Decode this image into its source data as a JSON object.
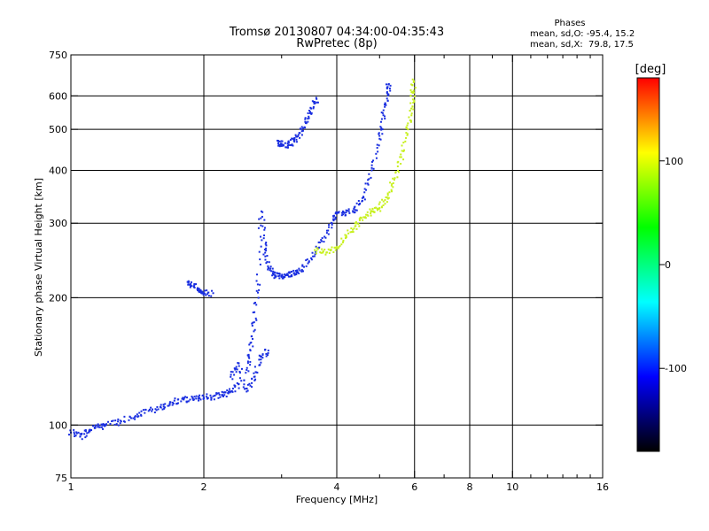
{
  "chart_data": {
    "type": "scatter",
    "title": "Tromsø 20130807 04:34:00-04:35:43",
    "subtitle": "RwPretec (8p)",
    "xlabel": "Frequency [MHz]",
    "ylabel": "Stationary phase Virtual Height [km]",
    "xscale": "log",
    "yscale": "log",
    "xlim": [
      1,
      16
    ],
    "ylim": [
      75,
      750
    ],
    "x_ticks": [
      1,
      2,
      4,
      6,
      8,
      10,
      16
    ],
    "x_tick_labels": [
      "1",
      "2",
      "4",
      "6",
      "8",
      "10",
      "16"
    ],
    "x_grid": [
      2,
      4,
      6,
      8,
      10
    ],
    "y_ticks": [
      75,
      100,
      200,
      300,
      400,
      500,
      600,
      750
    ],
    "y_tick_labels": [
      "75",
      "100",
      "200",
      "300",
      "400",
      "500",
      "600",
      "750"
    ],
    "y_grid": [
      100,
      200,
      300,
      400,
      500,
      600
    ],
    "grid": true,
    "phases": {
      "title": "Phases",
      "o_line": "mean, sd,O: -95.4, 15.2",
      "x_line": "mean, sd,X:  79.8, 17.5"
    },
    "colorbar": {
      "label": "[deg]",
      "range": [
        -180,
        180
      ],
      "ticks": [
        100,
        0,
        -100
      ],
      "tick_labels": [
        "100",
        "0",
        "-100"
      ],
      "colors": [
        "#ff0000",
        "#ffff00",
        "#00ff00",
        "#00ffff",
        "#0000ff",
        "#000000"
      ]
    },
    "series": [
      {
        "mode": "O",
        "phase": -100,
        "color": "#1a2fe0",
        "segments": [
          [
            [
              1.0,
              96
            ],
            [
              1.05,
              94
            ],
            [
              1.1,
              97
            ],
            [
              1.15,
              99
            ],
            [
              1.2,
              100
            ],
            [
              1.3,
              102
            ],
            [
              1.4,
              105
            ],
            [
              1.5,
              108
            ],
            [
              1.6,
              110
            ],
            [
              1.7,
              113
            ],
            [
              1.8,
              115
            ],
            [
              1.9,
              115
            ],
            [
              2.0,
              116
            ],
            [
              2.1,
              117
            ],
            [
              2.2,
              118
            ],
            [
              2.3,
              120
            ],
            [
              2.4,
              125
            ]
          ],
          [
            [
              1.85,
              218
            ],
            [
              1.9,
              212
            ],
            [
              1.95,
              207
            ],
            [
              2.0,
              205
            ],
            [
              2.1,
              205
            ]
          ],
          [
            [
              2.5,
              135
            ],
            [
              2.55,
              150
            ],
            [
              2.6,
              175
            ],
            [
              2.65,
              215
            ],
            [
              2.7,
              320
            ],
            [
              2.75,
              260
            ],
            [
              2.8,
              235
            ],
            [
              2.9,
              226
            ],
            [
              3.0,
              224
            ],
            [
              3.1,
              226
            ],
            [
              3.2,
              228
            ],
            [
              3.3,
              232
            ],
            [
              3.5,
              248
            ],
            [
              3.7,
              272
            ],
            [
              3.9,
              300
            ],
            [
              4.0,
              316
            ],
            [
              4.2,
              318
            ],
            [
              4.4,
              322
            ],
            [
              4.6,
              345
            ],
            [
              4.8,
              400
            ],
            [
              5.0,
              475
            ],
            [
              5.1,
              540
            ],
            [
              5.2,
              610
            ],
            [
              5.25,
              640
            ]
          ],
          [
            [
              2.95,
              470
            ],
            [
              3.0,
              462
            ],
            [
              3.1,
              458
            ],
            [
              3.2,
              470
            ],
            [
              3.3,
              490
            ],
            [
              3.4,
              520
            ],
            [
              3.5,
              560
            ],
            [
              3.6,
              590
            ]
          ],
          [
            [
              2.3,
              130
            ],
            [
              2.4,
              140
            ],
            [
              2.5,
              120
            ],
            [
              2.6,
              130
            ],
            [
              2.7,
              145
            ],
            [
              2.8,
              150
            ]
          ]
        ]
      },
      {
        "mode": "X",
        "phase": 80,
        "color": "#c8f020",
        "segments": [
          [
            [
              3.6,
              258
            ],
            [
              3.8,
              256
            ],
            [
              4.0,
              262
            ],
            [
              4.2,
              278
            ],
            [
              4.4,
              295
            ],
            [
              4.6,
              310
            ],
            [
              4.8,
              320
            ],
            [
              5.0,
              326
            ],
            [
              5.2,
              345
            ],
            [
              5.4,
              380
            ],
            [
              5.6,
              430
            ],
            [
              5.8,
              500
            ],
            [
              5.9,
              560
            ],
            [
              5.95,
              610
            ],
            [
              5.98,
              650
            ]
          ]
        ]
      }
    ]
  }
}
